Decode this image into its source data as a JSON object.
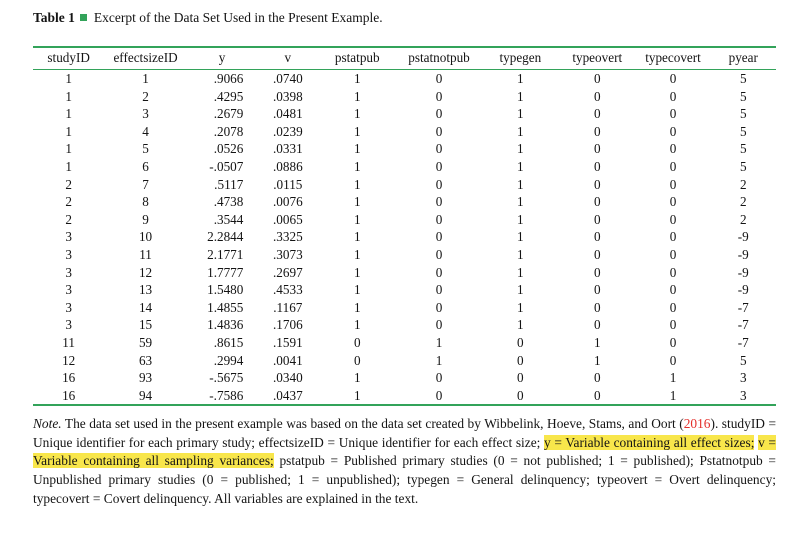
{
  "colors": {
    "accent_green": "#33a35a",
    "highlight_yellow": "#f8e64b",
    "link_red": "#e4302c"
  },
  "title": {
    "label": "Table 1",
    "caption": "Excerpt of the Data Set Used in the Present Example."
  },
  "table": {
    "columns": [
      "studyID",
      "effectsizeID",
      "y",
      "v",
      "pstatpub",
      "pstatnotpub",
      "typegen",
      "typeovert",
      "typecovert",
      "pyear"
    ],
    "rows": [
      [
        "1",
        "1",
        ".9066",
        ".0740",
        "1",
        "0",
        "1",
        "0",
        "0",
        "5"
      ],
      [
        "1",
        "2",
        ".4295",
        ".0398",
        "1",
        "0",
        "1",
        "0",
        "0",
        "5"
      ],
      [
        "1",
        "3",
        ".2679",
        ".0481",
        "1",
        "0",
        "1",
        "0",
        "0",
        "5"
      ],
      [
        "1",
        "4",
        ".2078",
        ".0239",
        "1",
        "0",
        "1",
        "0",
        "0",
        "5"
      ],
      [
        "1",
        "5",
        ".0526",
        ".0331",
        "1",
        "0",
        "1",
        "0",
        "0",
        "5"
      ],
      [
        "1",
        "6",
        "-.0507",
        ".0886",
        "1",
        "0",
        "1",
        "0",
        "0",
        "5"
      ],
      [
        "2",
        "7",
        ".5117",
        ".0115",
        "1",
        "0",
        "1",
        "0",
        "0",
        "2"
      ],
      [
        "2",
        "8",
        ".4738",
        ".0076",
        "1",
        "0",
        "1",
        "0",
        "0",
        "2"
      ],
      [
        "2",
        "9",
        ".3544",
        ".0065",
        "1",
        "0",
        "1",
        "0",
        "0",
        "2"
      ],
      [
        "3",
        "10",
        "2.2844",
        ".3325",
        "1",
        "0",
        "1",
        "0",
        "0",
        "-9"
      ],
      [
        "3",
        "11",
        "2.1771",
        ".3073",
        "1",
        "0",
        "1",
        "0",
        "0",
        "-9"
      ],
      [
        "3",
        "12",
        "1.7777",
        ".2697",
        "1",
        "0",
        "1",
        "0",
        "0",
        "-9"
      ],
      [
        "3",
        "13",
        "1.5480",
        ".4533",
        "1",
        "0",
        "1",
        "0",
        "0",
        "-9"
      ],
      [
        "3",
        "14",
        "1.4855",
        ".1167",
        "1",
        "0",
        "1",
        "0",
        "0",
        "-7"
      ],
      [
        "3",
        "15",
        "1.4836",
        ".1706",
        "1",
        "0",
        "1",
        "0",
        "0",
        "-7"
      ],
      [
        "11",
        "59",
        ".8615",
        ".1591",
        "0",
        "1",
        "0",
        "1",
        "0",
        "-7"
      ],
      [
        "12",
        "63",
        ".2994",
        ".0041",
        "0",
        "1",
        "0",
        "1",
        "0",
        "5"
      ],
      [
        "16",
        "93",
        "-.5675",
        ".0340",
        "1",
        "0",
        "0",
        "0",
        "1",
        "3"
      ],
      [
        "16",
        "94",
        "-.7586",
        ".0437",
        "1",
        "0",
        "0",
        "0",
        "1",
        "3"
      ]
    ]
  },
  "note": {
    "label": "Note.",
    "part1": " The data set used in the present example was based on the data set created by Wibbelink, Hoeve, Stams, and Oort (",
    "year": "2016",
    "part2": "). studyID = Unique identifier for each primary study; effectsizeID = Unique identifier for each effect size; ",
    "highlight1": "y = Variable containing all effect sizes;",
    "separator": " ",
    "highlight2": "v = Variable containing all sampling variances;",
    "part3": " pstatpub = Published primary studies (0 = not published; 1 = published); Pstatnotpub = Unpublished primary studies (0 = published; 1 = unpublished); typegen = General delinquency; typeovert = Overt delinquency; typecovert = Covert delinquency. All variables are explained in the text."
  }
}
